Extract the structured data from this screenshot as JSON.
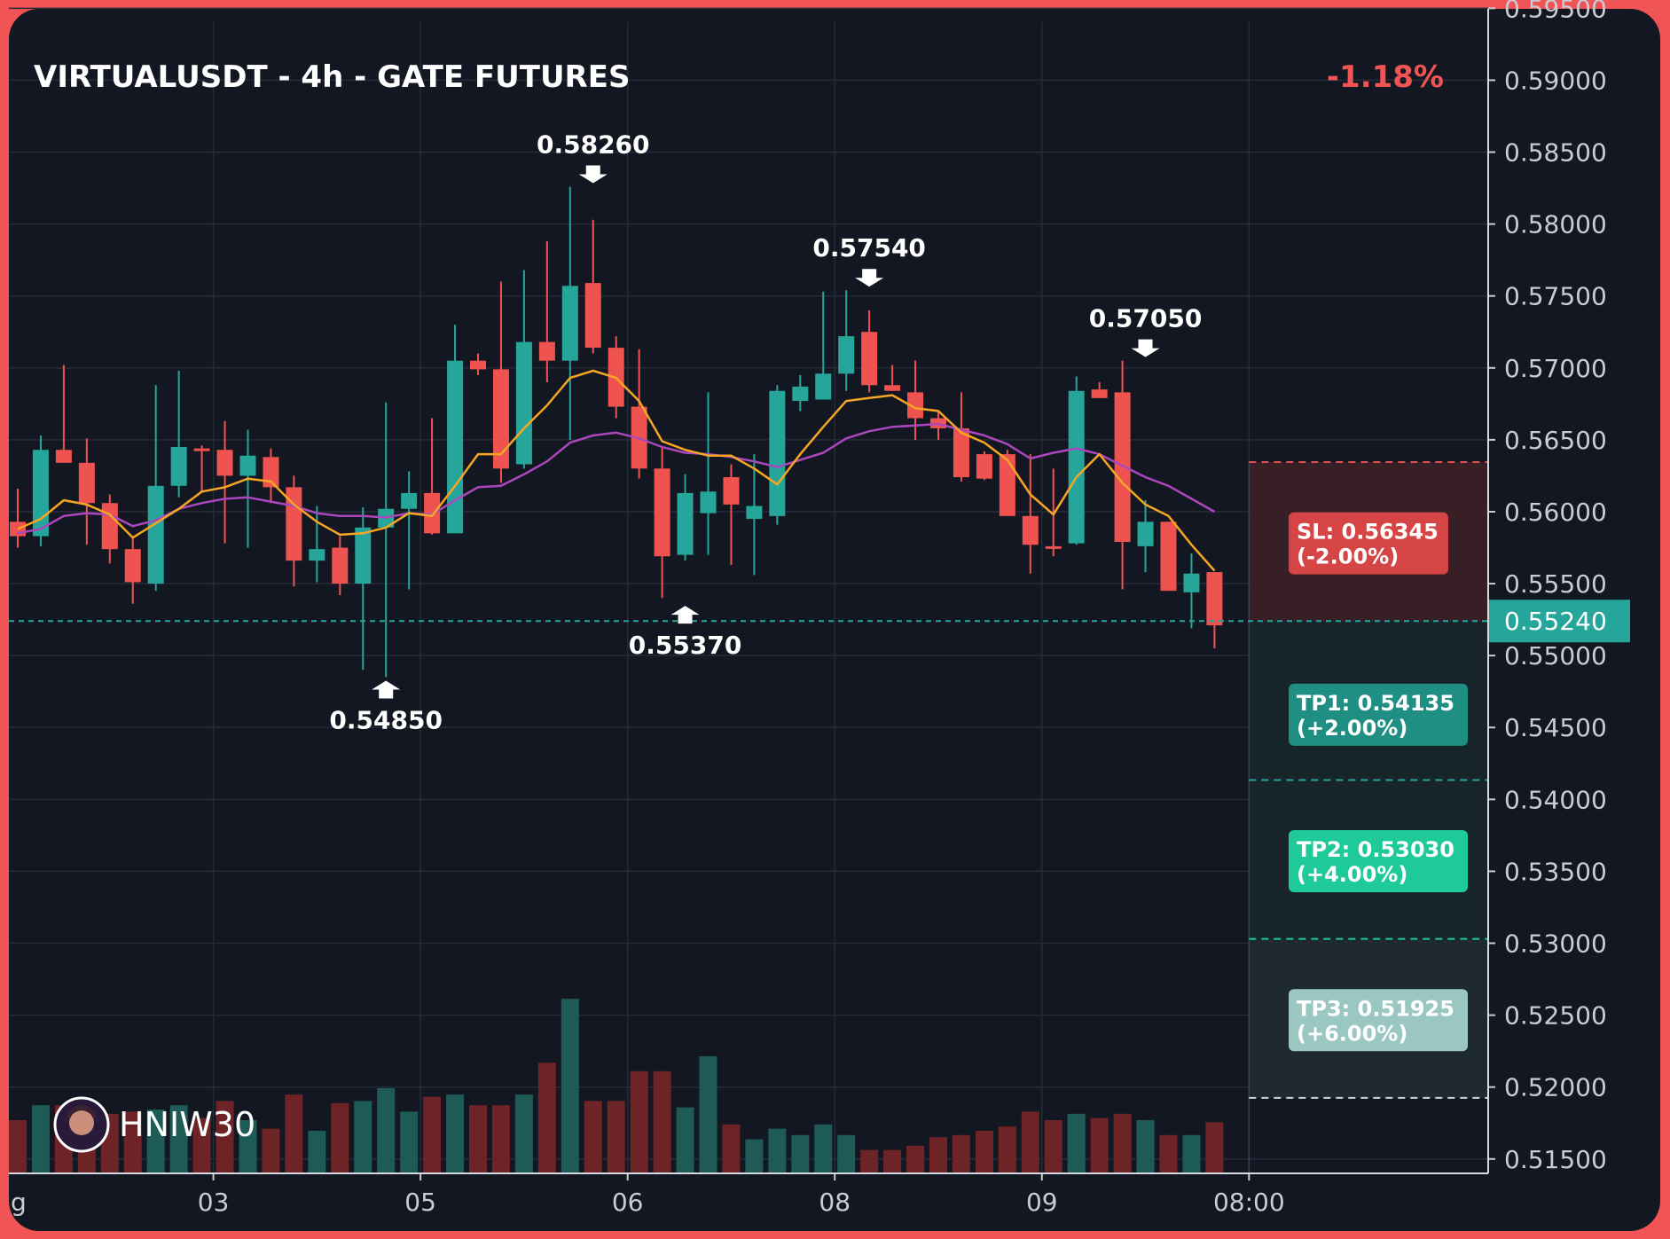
{
  "title": "VIRTUALUSDT - 4h - GATE FUTURES",
  "change": "-1.18%",
  "current_price": "0.55240",
  "watermark": "HNIW30",
  "colors": {
    "up": "#26a69a",
    "down": "#ef5350",
    "ma_fast": "#f5a623",
    "ma_slow": "#ab47bc",
    "sl_bg": "#d64545",
    "tp1_bg": "#1f8f84",
    "tp2_bg": "#1ec99a",
    "tp3_bg": "#9bc7c3"
  },
  "levels": [
    {
      "name": "sl",
      "label1": "SL: 0.56345",
      "label2": "(-2.00%)",
      "price": 0.56345
    },
    {
      "name": "tp1",
      "label1": "TP1: 0.54135",
      "label2": "(+2.00%)",
      "price": 0.54135
    },
    {
      "name": "tp2",
      "label1": "TP2: 0.53030",
      "label2": "(+4.00%)",
      "price": 0.5303
    },
    {
      "name": "tp3",
      "label1": "TP3: 0.51925",
      "label2": "(+6.00%)",
      "price": 0.51925
    }
  ],
  "callouts": [
    {
      "text": "0.58260",
      "index": 25,
      "type": "high",
      "price": 0.5826
    },
    {
      "text": "0.54850",
      "index": 16,
      "type": "low",
      "price": 0.5485
    },
    {
      "text": "0.55370",
      "index": 29,
      "type": "low",
      "price": 0.5537
    },
    {
      "text": "0.57540",
      "index": 37,
      "type": "high",
      "price": 0.5754
    },
    {
      "text": "0.57050",
      "index": 49,
      "type": "high",
      "price": 0.5705
    }
  ],
  "chart_data": {
    "type": "candlestick",
    "title": "VIRTUALUSDT - 4h - GATE FUTURES",
    "ylim": [
      0.514,
      0.596
    ],
    "y_ticks": [
      "0.59500",
      "0.59000",
      "0.58500",
      "0.58000",
      "0.57500",
      "0.57000",
      "0.56500",
      "0.56000",
      "0.55500",
      "0.55000",
      "0.54500",
      "0.54000",
      "0.53500",
      "0.53000",
      "0.52500",
      "0.52000",
      "0.51500"
    ],
    "y_tick_values": [
      0.595,
      0.59,
      0.585,
      0.58,
      0.575,
      0.57,
      0.565,
      0.56,
      0.555,
      0.55,
      0.545,
      0.54,
      0.535,
      0.53,
      0.525,
      0.52,
      0.515
    ],
    "x_ticks": [
      {
        "label": "g",
        "index": -0.45
      },
      {
        "label": "03",
        "index": 8.5
      },
      {
        "label": "05",
        "index": 17.5
      },
      {
        "label": "06",
        "index": 26.5
      },
      {
        "label": "08",
        "index": 35.5
      },
      {
        "label": "09",
        "index": 44.5
      },
      {
        "label": "08:00",
        "index": 53.5
      }
    ],
    "grid": true,
    "ohlc": [
      [
        0.5593,
        0.5616,
        0.5575,
        0.5583
      ],
      [
        0.5583,
        0.5653,
        0.5576,
        0.5643
      ],
      [
        0.5643,
        0.5702,
        0.5636,
        0.5634
      ],
      [
        0.5634,
        0.5651,
        0.5577,
        0.5606
      ],
      [
        0.5606,
        0.5612,
        0.5564,
        0.5574
      ],
      [
        0.5574,
        0.5582,
        0.5536,
        0.5551
      ],
      [
        0.555,
        0.5688,
        0.5545,
        0.5618
      ],
      [
        0.5618,
        0.5698,
        0.561,
        0.5645
      ],
      [
        0.5644,
        0.5646,
        0.5613,
        0.5643
      ],
      [
        0.5643,
        0.5663,
        0.5578,
        0.5625
      ],
      [
        0.5625,
        0.5657,
        0.5575,
        0.5639
      ],
      [
        0.5638,
        0.5644,
        0.5606,
        0.5617
      ],
      [
        0.5617,
        0.5625,
        0.5548,
        0.5566
      ],
      [
        0.5566,
        0.5604,
        0.5551,
        0.5574
      ],
      [
        0.5575,
        0.5583,
        0.5542,
        0.555
      ],
      [
        0.555,
        0.5603,
        0.549,
        0.5589
      ],
      [
        0.5589,
        0.5676,
        0.5485,
        0.5602
      ],
      [
        0.5602,
        0.5628,
        0.5546,
        0.5613
      ],
      [
        0.5613,
        0.5665,
        0.5584,
        0.5585
      ],
      [
        0.5585,
        0.573,
        0.5585,
        0.5705
      ],
      [
        0.5705,
        0.571,
        0.5695,
        0.5699
      ],
      [
        0.5699,
        0.576,
        0.562,
        0.563
      ],
      [
        0.5633,
        0.5768,
        0.563,
        0.5718
      ],
      [
        0.5718,
        0.5788,
        0.569,
        0.5705
      ],
      [
        0.5705,
        0.5826,
        0.565,
        0.5757
      ],
      [
        0.5759,
        0.5803,
        0.571,
        0.5714
      ],
      [
        0.5714,
        0.5722,
        0.5665,
        0.5673
      ],
      [
        0.5673,
        0.5713,
        0.5623,
        0.563
      ],
      [
        0.563,
        0.5645,
        0.554,
        0.5569
      ],
      [
        0.557,
        0.5626,
        0.5566,
        0.5613
      ],
      [
        0.5599,
        0.5683,
        0.557,
        0.5614
      ],
      [
        0.5624,
        0.5633,
        0.5563,
        0.5605
      ],
      [
        0.5595,
        0.564,
        0.5556,
        0.5604
      ],
      [
        0.5597,
        0.5688,
        0.5591,
        0.5684
      ],
      [
        0.5677,
        0.5695,
        0.567,
        0.5687
      ],
      [
        0.5678,
        0.5753,
        0.5678,
        0.5696
      ],
      [
        0.5696,
        0.5754,
        0.5684,
        0.5722
      ],
      [
        0.5725,
        0.574,
        0.5683,
        0.5688
      ],
      [
        0.5688,
        0.5702,
        0.5684,
        0.5684
      ],
      [
        0.5683,
        0.5705,
        0.565,
        0.5665
      ],
      [
        0.5665,
        0.567,
        0.565,
        0.5658
      ],
      [
        0.5658,
        0.5683,
        0.5621,
        0.5624
      ],
      [
        0.564,
        0.5642,
        0.5622,
        0.5623
      ],
      [
        0.564,
        0.5643,
        0.5599,
        0.5597
      ],
      [
        0.5597,
        0.564,
        0.5557,
        0.5577
      ],
      [
        0.5576,
        0.563,
        0.5569,
        0.5575
      ],
      [
        0.5578,
        0.5694,
        0.5577,
        0.5684
      ],
      [
        0.5685,
        0.569,
        0.568,
        0.5679
      ],
      [
        0.5683,
        0.5705,
        0.5546,
        0.5579
      ],
      [
        0.5576,
        0.5608,
        0.5558,
        0.5593
      ],
      [
        0.5593,
        0.5593,
        0.5548,
        0.5545
      ],
      [
        0.5544,
        0.5571,
        0.5519,
        0.5557
      ],
      [
        0.5558,
        0.5558,
        0.5505,
        0.5521
      ]
    ],
    "ma_fast": [
      0.5588,
      0.5595,
      0.5608,
      0.5605,
      0.5598,
      0.5582,
      0.5592,
      0.5602,
      0.5614,
      0.5617,
      0.5623,
      0.5621,
      0.5605,
      0.5593,
      0.5584,
      0.5585,
      0.5589,
      0.5599,
      0.5597,
      0.5618,
      0.564,
      0.564,
      0.5658,
      0.5674,
      0.5693,
      0.5698,
      0.5693,
      0.5677,
      0.5649,
      0.5643,
      0.5639,
      0.5639,
      0.563,
      0.5619,
      0.564,
      0.5659,
      0.5677,
      0.5679,
      0.5681,
      0.5672,
      0.567,
      0.5655,
      0.5648,
      0.5636,
      0.5612,
      0.5598,
      0.5624,
      0.564,
      0.562,
      0.5605,
      0.5597,
      0.5577,
      0.5559
    ],
    "ma_slow": [
      0.5585,
      0.5588,
      0.5597,
      0.5599,
      0.5598,
      0.559,
      0.5594,
      0.5602,
      0.5606,
      0.5609,
      0.561,
      0.5607,
      0.5604,
      0.5599,
      0.5597,
      0.5597,
      0.5596,
      0.5599,
      0.5598,
      0.5608,
      0.5617,
      0.5618,
      0.5626,
      0.5635,
      0.5648,
      0.5653,
      0.5655,
      0.5651,
      0.5645,
      0.5641,
      0.564,
      0.5638,
      0.5635,
      0.5631,
      0.5636,
      0.5641,
      0.5651,
      0.5656,
      0.5659,
      0.566,
      0.5661,
      0.5657,
      0.5653,
      0.5647,
      0.5637,
      0.5641,
      0.5644,
      0.564,
      0.5632,
      0.5624,
      0.5618,
      0.5609,
      0.56
    ],
    "volume": [
      0.25,
      0.32,
      0.32,
      0.2,
      0.28,
      0.29,
      0.3,
      0.32,
      0.26,
      0.34,
      0.25,
      0.21,
      0.37,
      0.2,
      0.33,
      0.34,
      0.4,
      0.29,
      0.36,
      0.37,
      0.32,
      0.32,
      0.37,
      0.52,
      0.82,
      0.34,
      0.34,
      0.48,
      0.48,
      0.31,
      0.55,
      0.23,
      0.16,
      0.21,
      0.18,
      0.23,
      0.18,
      0.11,
      0.11,
      0.13,
      0.17,
      0.18,
      0.2,
      0.22,
      0.29,
      0.25,
      0.28,
      0.26,
      0.28,
      0.25,
      0.18,
      0.18,
      0.24
    ]
  }
}
